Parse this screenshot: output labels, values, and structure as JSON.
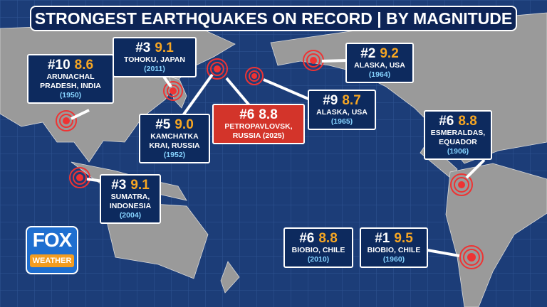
{
  "title": "STRONGEST EARTHQUAKES ON RECORD | BY MAGNITUDE",
  "labels": [
    {
      "rank": "#10",
      "magnitude": "8.6",
      "place": [
        "ARUNACHAL",
        "PRADESH, INDIA"
      ],
      "year": "(1950)"
    },
    {
      "rank": "#3",
      "magnitude": "9.1",
      "place": [
        "TOHOKU, JAPAN"
      ],
      "year": "(2011)"
    },
    {
      "rank": "#2",
      "magnitude": "9.2",
      "place": [
        "ALASKA, USA"
      ],
      "year": "(1964)"
    },
    {
      "rank": "#9",
      "magnitude": "8.7",
      "place": [
        "ALASKA, USA"
      ],
      "year": "(1965)"
    },
    {
      "rank": "#5",
      "magnitude": "9.0",
      "place": [
        "KAMCHATKA",
        "KRAI, RUSSIA"
      ],
      "year": "(1952)"
    },
    {
      "rank": "#6",
      "magnitude": "8.8",
      "place": [
        "PETROPAVLOVSK,",
        "RUSSIA (2025)"
      ]
    },
    {
      "rank": "#6",
      "magnitude": "8.8",
      "place": [
        "ESMERALDAS,",
        "EQUADOR"
      ],
      "year": "(1906)"
    },
    {
      "rank": "#3",
      "magnitude": "9.1",
      "place": [
        "SUMATRA,",
        "INDONESIA"
      ],
      "year": "(2004)"
    },
    {
      "rank": "#6",
      "magnitude": "8.8",
      "place": [
        "BIOBIO, CHILE"
      ],
      "year": "(2010)"
    },
    {
      "rank": "#1",
      "magnitude": "9.5",
      "place": [
        "BIOBIO, CHILE"
      ],
      "year": "(1960)"
    }
  ],
  "logo": {
    "top": "FOX",
    "bottom": "WEATHER"
  }
}
